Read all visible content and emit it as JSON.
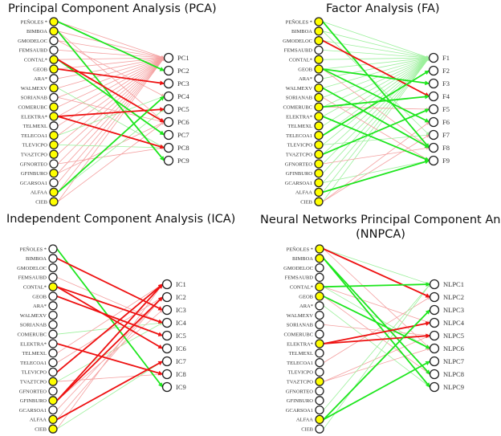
{
  "colors": {
    "node_filled": "#ffff00",
    "node_empty": "#ffffff",
    "node_stroke": "#222222",
    "strong_positive": "#1ee61e",
    "weak_positive": "#9cf09c",
    "strong_negative": "#ee1111",
    "weak_negative": "#f4a0a0"
  },
  "inputs": [
    "PEÑOLES *",
    "BIMBOA",
    "GMODELOC",
    "FEMSAUBD",
    "CONTAL*",
    "GEOB",
    "ARA*",
    "WALMEXV",
    "SORIANAB",
    "COMERUBC",
    "ELEKTRA*",
    "TELMEXL",
    "TELECOA1",
    "TLEVICPO",
    "TVAZTCPO",
    "GFNORTEO",
    "GFINBURO",
    "GCARSOA1",
    "ALFAA",
    "CIEB"
  ],
  "panels": [
    {
      "id": "pca",
      "title": "Principal Component Analysis (PCA)",
      "outputs": [
        "PC1",
        "PC2",
        "PC3",
        "PC4",
        "PC5",
        "PC6",
        "PC7",
        "PC8",
        "PC9"
      ],
      "filled": [
        1,
        1,
        0,
        0,
        1,
        1,
        0,
        1,
        0,
        1,
        1,
        0,
        1,
        1,
        1,
        0,
        1,
        0,
        1,
        1
      ],
      "edges": [
        {
          "from": 0,
          "to": 0,
          "type": "weak_negative"
        },
        {
          "from": 1,
          "to": 0,
          "type": "weak_negative"
        },
        {
          "from": 2,
          "to": 0,
          "type": "weak_negative"
        },
        {
          "from": 3,
          "to": 0,
          "type": "weak_negative"
        },
        {
          "from": 4,
          "to": 0,
          "type": "weak_negative"
        },
        {
          "from": 5,
          "to": 0,
          "type": "weak_negative"
        },
        {
          "from": 6,
          "to": 0,
          "type": "weak_negative"
        },
        {
          "from": 7,
          "to": 0,
          "type": "weak_negative"
        },
        {
          "from": 8,
          "to": 0,
          "type": "weak_negative"
        },
        {
          "from": 9,
          "to": 0,
          "type": "weak_negative"
        },
        {
          "from": 10,
          "to": 0,
          "type": "weak_negative"
        },
        {
          "from": 11,
          "to": 0,
          "type": "weak_negative"
        },
        {
          "from": 12,
          "to": 0,
          "type": "weak_negative"
        },
        {
          "from": 13,
          "to": 0,
          "type": "weak_negative"
        },
        {
          "from": 14,
          "to": 0,
          "type": "weak_negative"
        },
        {
          "from": 15,
          "to": 0,
          "type": "weak_negative"
        },
        {
          "from": 16,
          "to": 0,
          "type": "weak_negative"
        },
        {
          "from": 17,
          "to": 0,
          "type": "weak_negative"
        },
        {
          "from": 18,
          "to": 0,
          "type": "weak_negative"
        },
        {
          "from": 19,
          "to": 0,
          "type": "weak_negative"
        },
        {
          "from": 0,
          "to": 1,
          "type": "strong_positive"
        },
        {
          "from": 1,
          "to": 8,
          "type": "strong_positive"
        },
        {
          "from": 1,
          "to": 5,
          "type": "weak_negative"
        },
        {
          "from": 2,
          "to": 3,
          "type": "weak_negative"
        },
        {
          "from": 4,
          "to": 6,
          "type": "strong_positive"
        },
        {
          "from": 4,
          "to": 5,
          "type": "strong_negative"
        },
        {
          "from": 5,
          "to": 2,
          "type": "strong_negative"
        },
        {
          "from": 7,
          "to": 7,
          "type": "weak_positive"
        },
        {
          "from": 10,
          "to": 4,
          "type": "strong_negative"
        },
        {
          "from": 10,
          "to": 7,
          "type": "strong_negative"
        },
        {
          "from": 12,
          "to": 3,
          "type": "weak_positive"
        },
        {
          "from": 13,
          "to": 7,
          "type": "weak_positive"
        },
        {
          "from": 15,
          "to": 7,
          "type": "weak_negative"
        },
        {
          "from": 16,
          "to": 5,
          "type": "weak_negative"
        },
        {
          "from": 18,
          "to": 3,
          "type": "strong_positive"
        },
        {
          "from": 18,
          "to": 4,
          "type": "weak_positive"
        },
        {
          "from": 19,
          "to": 5,
          "type": "weak_negative"
        },
        {
          "from": 8,
          "to": 5,
          "type": "weak_negative"
        }
      ]
    },
    {
      "id": "fa",
      "title": "Factor Analysis (FA)",
      "outputs": [
        "F1",
        "F2",
        "F3",
        "F4",
        "F5",
        "F6",
        "F7",
        "F8",
        "F9"
      ],
      "filled": [
        1,
        1,
        1,
        0,
        1,
        1,
        0,
        1,
        1,
        1,
        1,
        1,
        1,
        1,
        1,
        1,
        1,
        1,
        1,
        1
      ],
      "edges": [
        {
          "from": 0,
          "to": 0,
          "type": "weak_positive"
        },
        {
          "from": 1,
          "to": 0,
          "type": "weak_positive"
        },
        {
          "from": 2,
          "to": 0,
          "type": "weak_positive"
        },
        {
          "from": 3,
          "to": 0,
          "type": "weak_positive"
        },
        {
          "from": 4,
          "to": 0,
          "type": "weak_positive"
        },
        {
          "from": 5,
          "to": 0,
          "type": "weak_positive"
        },
        {
          "from": 6,
          "to": 0,
          "type": "weak_positive"
        },
        {
          "from": 7,
          "to": 0,
          "type": "weak_positive"
        },
        {
          "from": 8,
          "to": 0,
          "type": "weak_positive"
        },
        {
          "from": 9,
          "to": 0,
          "type": "weak_positive"
        },
        {
          "from": 10,
          "to": 0,
          "type": "weak_positive"
        },
        {
          "from": 11,
          "to": 0,
          "type": "weak_positive"
        },
        {
          "from": 12,
          "to": 0,
          "type": "weak_positive"
        },
        {
          "from": 13,
          "to": 0,
          "type": "weak_positive"
        },
        {
          "from": 14,
          "to": 0,
          "type": "weak_positive"
        },
        {
          "from": 15,
          "to": 0,
          "type": "weak_positive"
        },
        {
          "from": 16,
          "to": 0,
          "type": "weak_positive"
        },
        {
          "from": 17,
          "to": 0,
          "type": "weak_positive"
        },
        {
          "from": 18,
          "to": 0,
          "type": "weak_positive"
        },
        {
          "from": 19,
          "to": 0,
          "type": "weak_positive"
        },
        {
          "from": 0,
          "to": 7,
          "type": "strong_positive"
        },
        {
          "from": 1,
          "to": 6,
          "type": "weak_positive"
        },
        {
          "from": 2,
          "to": 3,
          "type": "strong_negative"
        },
        {
          "from": 5,
          "to": 2,
          "type": "strong_positive"
        },
        {
          "from": 5,
          "to": 5,
          "type": "strong_positive"
        },
        {
          "from": 5,
          "to": 7,
          "type": "weak_negative"
        },
        {
          "from": 7,
          "to": 7,
          "type": "strong_positive"
        },
        {
          "from": 8,
          "to": 8,
          "type": "weak_negative"
        },
        {
          "from": 9,
          "to": 3,
          "type": "strong_positive"
        },
        {
          "from": 9,
          "to": 4,
          "type": "weak_negative"
        },
        {
          "from": 10,
          "to": 8,
          "type": "strong_positive"
        },
        {
          "from": 12,
          "to": 1,
          "type": "strong_positive"
        },
        {
          "from": 13,
          "to": 6,
          "type": "weak_positive"
        },
        {
          "from": 14,
          "to": 4,
          "type": "strong_positive"
        },
        {
          "from": 15,
          "to": 7,
          "type": "weak_negative"
        },
        {
          "from": 17,
          "to": 8,
          "type": "weak_positive"
        },
        {
          "from": 18,
          "to": 8,
          "type": "strong_positive"
        },
        {
          "from": 19,
          "to": 5,
          "type": "weak_negative"
        },
        {
          "from": 19,
          "to": 6,
          "type": "weak_negative"
        }
      ]
    },
    {
      "id": "ica",
      "title": "Independent Component Analysis (ICA)",
      "outputs": [
        "IC1",
        "IC2",
        "IC3",
        "IC4",
        "IC5",
        "IC6",
        "IC7",
        "IC8",
        "IC9"
      ],
      "filled": [
        0,
        0,
        0,
        0,
        1,
        0,
        0,
        0,
        0,
        0,
        0,
        0,
        0,
        0,
        1,
        0,
        1,
        0,
        1,
        1
      ],
      "edges": [
        {
          "from": 0,
          "to": 8,
          "type": "strong_positive"
        },
        {
          "from": 1,
          "to": 2,
          "type": "strong_negative"
        },
        {
          "from": 3,
          "to": 3,
          "type": "weak_negative"
        },
        {
          "from": 4,
          "to": 3,
          "type": "strong_negative"
        },
        {
          "from": 4,
          "to": 5,
          "type": "strong_negative"
        },
        {
          "from": 5,
          "to": 4,
          "type": "strong_negative"
        },
        {
          "from": 9,
          "to": 3,
          "type": "weak_positive"
        },
        {
          "from": 10,
          "to": 7,
          "type": "strong_negative"
        },
        {
          "from": 11,
          "to": 0,
          "type": "weak_negative"
        },
        {
          "from": 12,
          "to": 1,
          "type": "weak_negative"
        },
        {
          "from": 13,
          "to": 0,
          "type": "strong_negative"
        },
        {
          "from": 14,
          "to": 3,
          "type": "weak_positive"
        },
        {
          "from": 14,
          "to": 7,
          "type": "weak_negative"
        },
        {
          "from": 16,
          "to": 0,
          "type": "strong_negative"
        },
        {
          "from": 16,
          "to": 1,
          "type": "strong_negative"
        },
        {
          "from": 16,
          "to": 2,
          "type": "weak_negative"
        },
        {
          "from": 18,
          "to": 6,
          "type": "strong_negative"
        },
        {
          "from": 18,
          "to": 1,
          "type": "weak_negative"
        },
        {
          "from": 19,
          "to": 0,
          "type": "weak_negative"
        },
        {
          "from": 19,
          "to": 6,
          "type": "weak_positive"
        },
        {
          "from": 17,
          "to": 1,
          "type": "weak_negative"
        }
      ]
    },
    {
      "id": "nnpca",
      "title": "Neural Networks Principal Component Analysis (NNPCA)",
      "title_line1": "Neural Networks Principal Component Analysis",
      "title_line2": "(NNPCA)",
      "outputs": [
        "NLPC1",
        "NLPC2",
        "NLPC3",
        "NLPC4",
        "NLPC5",
        "NLPC6",
        "NLPC7",
        "NLPC8",
        "NLPC9"
      ],
      "filled": [
        1,
        1,
        0,
        0,
        1,
        1,
        0,
        0,
        0,
        0,
        1,
        0,
        0,
        0,
        1,
        0,
        0,
        0,
        1,
        0
      ],
      "edges": [
        {
          "from": 0,
          "to": 1,
          "type": "strong_negative"
        },
        {
          "from": 0,
          "to": 0,
          "type": "weak_positive"
        },
        {
          "from": 0,
          "to": 5,
          "type": "weak_negative"
        },
        {
          "from": 1,
          "to": 7,
          "type": "strong_positive"
        },
        {
          "from": 1,
          "to": 8,
          "type": "strong_positive"
        },
        {
          "from": 4,
          "to": 0,
          "type": "strong_positive"
        },
        {
          "from": 4,
          "to": 3,
          "type": "weak_negative"
        },
        {
          "from": 4,
          "to": 5,
          "type": "weak_positive"
        },
        {
          "from": 5,
          "to": 5,
          "type": "strong_positive"
        },
        {
          "from": 5,
          "to": 7,
          "type": "weak_negative"
        },
        {
          "from": 6,
          "to": 8,
          "type": "weak_positive"
        },
        {
          "from": 8,
          "to": 4,
          "type": "weak_negative"
        },
        {
          "from": 10,
          "to": 3,
          "type": "strong_negative"
        },
        {
          "from": 10,
          "to": 4,
          "type": "strong_negative"
        },
        {
          "from": 12,
          "to": 1,
          "type": "weak_negative"
        },
        {
          "from": 14,
          "to": 4,
          "type": "weak_negative"
        },
        {
          "from": 14,
          "to": 5,
          "type": "weak_negative"
        },
        {
          "from": 18,
          "to": 2,
          "type": "strong_positive"
        },
        {
          "from": 18,
          "to": 6,
          "type": "strong_positive"
        },
        {
          "from": 19,
          "to": 0,
          "type": "weak_positive"
        },
        {
          "from": 17,
          "to": 0,
          "type": "weak_positive"
        }
      ]
    }
  ]
}
